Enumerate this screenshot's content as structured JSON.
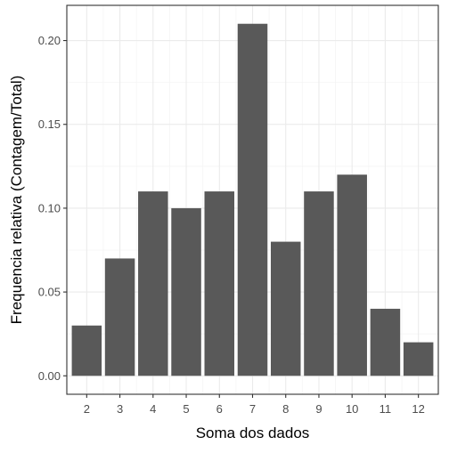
{
  "chart_data": {
    "type": "bar",
    "title": "",
    "xlabel": "Soma dos dados",
    "ylabel": "Frequencia relativa (Contagem/Total)",
    "categories": [
      "2",
      "3",
      "4",
      "5",
      "6",
      "7",
      "8",
      "9",
      "10",
      "11",
      "12"
    ],
    "values": [
      0.03,
      0.07,
      0.11,
      0.1,
      0.11,
      0.21,
      0.08,
      0.11,
      0.12,
      0.04,
      0.02
    ],
    "ylim": [
      -0.011,
      0.221
    ],
    "yticks": [
      0.0,
      0.05,
      0.1,
      0.15,
      0.2
    ],
    "ytick_labels": [
      "0.00",
      "0.05",
      "0.10",
      "0.15",
      "0.20"
    ],
    "grid": true,
    "legend": "none",
    "colors": {
      "bar": "#595959",
      "grid_major": "#ebebeb",
      "grid_minor": "#f5f5f5",
      "panel_border": "#333333",
      "tick_text": "#4d4d4d"
    }
  }
}
